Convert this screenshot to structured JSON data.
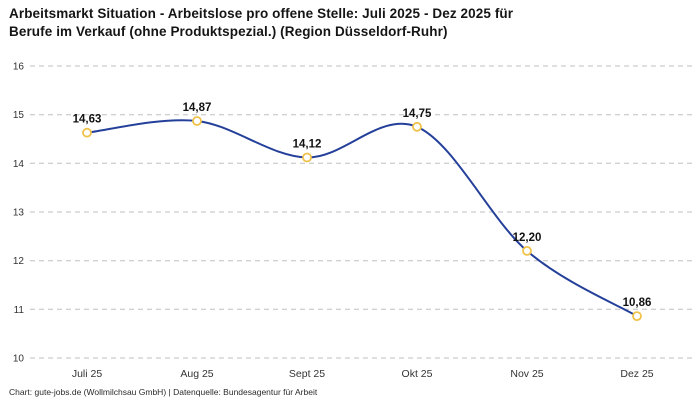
{
  "footer": "Chart: gute-jobs.de (Wollmilchsau GmbH) | Datenquelle: Bundesagentur für Arbeit",
  "chart_data": {
    "type": "line",
    "title": "Arbeitsmarkt Situation - Arbeitslose pro offene Stelle: Juli 2025 - Dez 2025 für\nBerufe im Verkauf (ohne Produktspezial.) (Region Düsseldorf-Ruhr)",
    "categories": [
      "Juli 25",
      "Aug 25",
      "Sept 25",
      "Okt 25",
      "Nov 25",
      "Dez 25"
    ],
    "values": [
      14.63,
      14.87,
      14.12,
      14.75,
      12.2,
      10.86
    ],
    "value_labels": [
      "14,63",
      "14,87",
      "14,12",
      "14,75",
      "12,20",
      "10,86"
    ],
    "xlabel": "",
    "ylabel": "",
    "ylim": [
      10,
      16
    ],
    "yticks": [
      10,
      11,
      12,
      13,
      14,
      15,
      16
    ],
    "grid": "dashed-horizontal",
    "legend": "none",
    "line_color": "#24409a",
    "marker_color": "#f0c24b",
    "marker_fill": "#ffffff",
    "grid_color": "#bfbfbf",
    "tick_label_color": "#333333",
    "data_label_color": "#111111"
  }
}
